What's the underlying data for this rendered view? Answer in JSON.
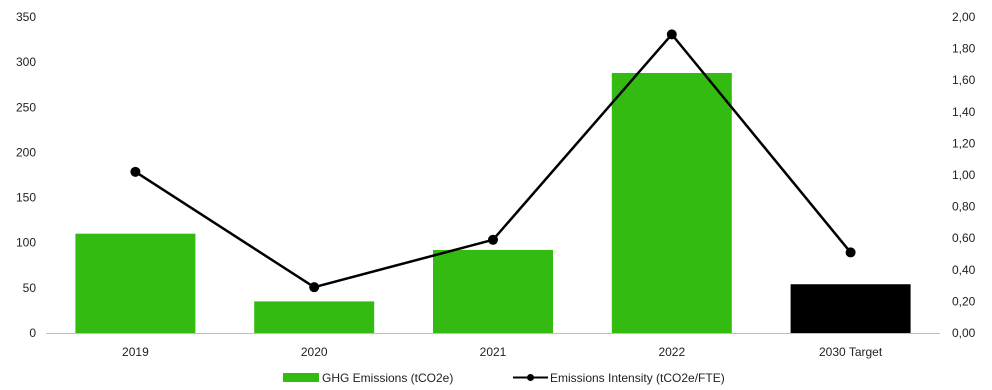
{
  "chart_data": {
    "type": "bar",
    "categories": [
      "2019",
      "2020",
      "2021",
      "2022",
      "2030 Target"
    ],
    "y_left": {
      "ticks": [
        "0",
        "50",
        "100",
        "150",
        "200",
        "250",
        "300",
        "350"
      ],
      "ylim": [
        0,
        350
      ]
    },
    "y_right": {
      "ticks": [
        "0,00",
        "0,20",
        "0,40",
        "0,60",
        "0,80",
        "1,00",
        "1,20",
        "1,40",
        "1,60",
        "1,80",
        "2,00"
      ],
      "ylim": [
        0,
        2.0
      ]
    },
    "series": [
      {
        "name": "GHG Emissions (tCO2e)",
        "type": "bar",
        "axis": "left",
        "values": [
          110,
          35,
          92,
          288,
          54
        ],
        "colors": [
          "#33bb11",
          "#33bb11",
          "#33bb11",
          "#33bb11",
          "#000000"
        ]
      },
      {
        "name": "Emissions Intensity (tCO2e/FTE)",
        "type": "line",
        "axis": "right",
        "values": [
          1.02,
          0.29,
          0.59,
          1.89,
          0.51
        ],
        "color": "#000000"
      }
    ],
    "grid": false,
    "legend_position": "bottom"
  }
}
